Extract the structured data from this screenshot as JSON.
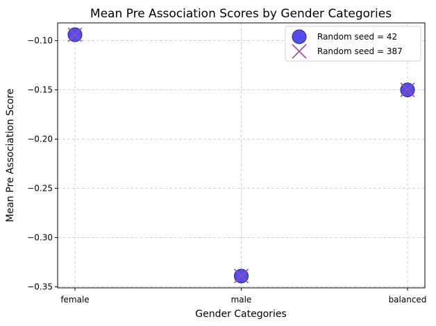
{
  "chart_data": {
    "type": "scatter",
    "title": "Mean Pre Association Scores by Gender Categories",
    "xlabel": "Gender Categories",
    "ylabel": "Mean Pre Association Score",
    "categories": [
      "female",
      "male",
      "balanced"
    ],
    "ylim": [
      -0.351,
      -0.082
    ],
    "yticks": [
      -0.1,
      -0.15,
      -0.2,
      -0.25,
      -0.3,
      -0.35
    ],
    "ytick_labels": [
      "−0.10",
      "−0.15",
      "−0.20",
      "−0.25",
      "−0.30",
      "−0.35"
    ],
    "grid": true,
    "legend_position": "top-right",
    "series": [
      {
        "name": "Random seed = 42",
        "marker": "circle",
        "color": "#3a33f0",
        "values": [
          -0.094,
          -0.339,
          -0.15
        ]
      },
      {
        "name": "Random seed = 387",
        "marker": "x",
        "color": "#a04aa8",
        "values": [
          -0.094,
          -0.339,
          -0.15
        ]
      }
    ]
  }
}
